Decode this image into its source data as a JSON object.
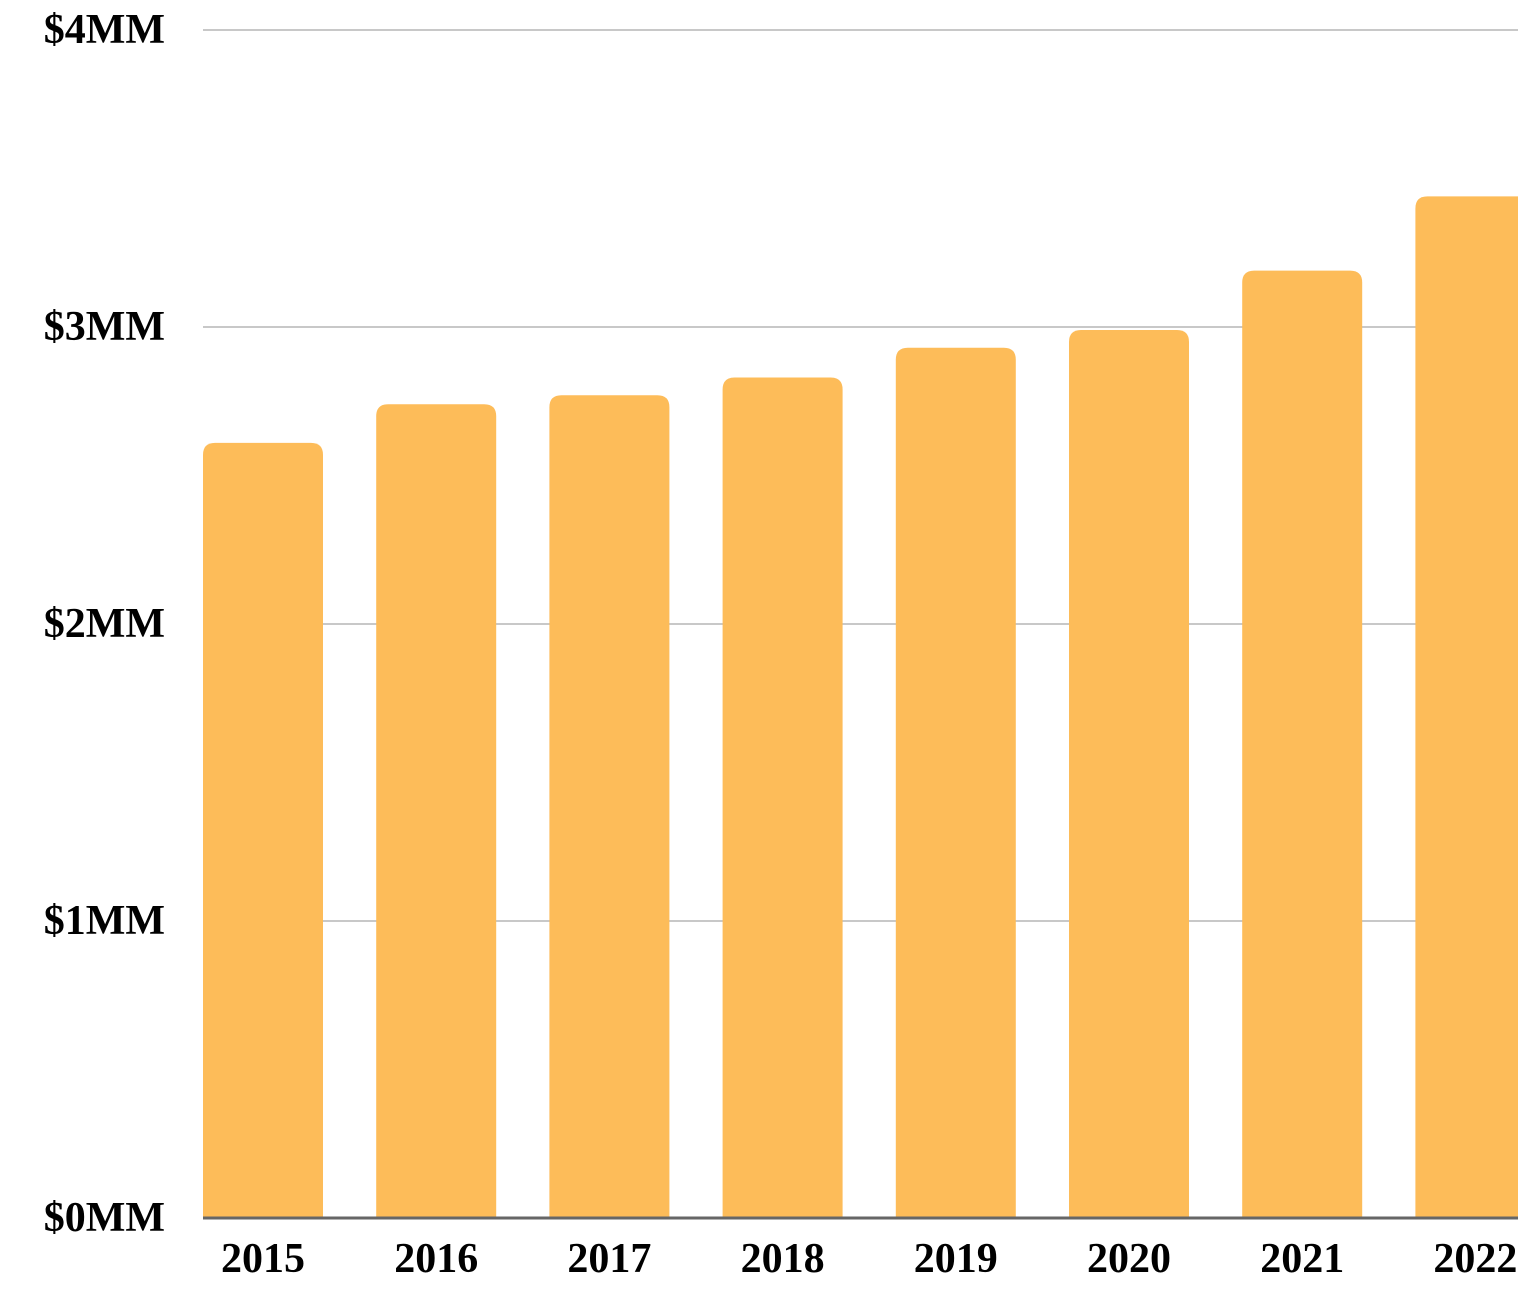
{
  "chart_data": {
    "type": "bar",
    "title": "",
    "xlabel": "",
    "ylabel": "",
    "categories": [
      "2015",
      "2016",
      "2017",
      "2018",
      "2019",
      "2020",
      "2021",
      "2022"
    ],
    "values": [
      2.61,
      2.74,
      2.77,
      2.83,
      2.93,
      2.99,
      3.19,
      3.44
    ],
    "ylim": [
      0,
      4
    ],
    "y_ticks": [
      0,
      1,
      2,
      3,
      4
    ],
    "y_tick_labels": [
      "$0MM",
      "$1MM",
      "$2MM",
      "$3MM",
      "$4MM"
    ],
    "grid": true,
    "legend": "none",
    "colors": {
      "bar": "#fdbc59",
      "grid": "#c8c8c8",
      "baseline": "#666666",
      "text": "#000000"
    }
  }
}
